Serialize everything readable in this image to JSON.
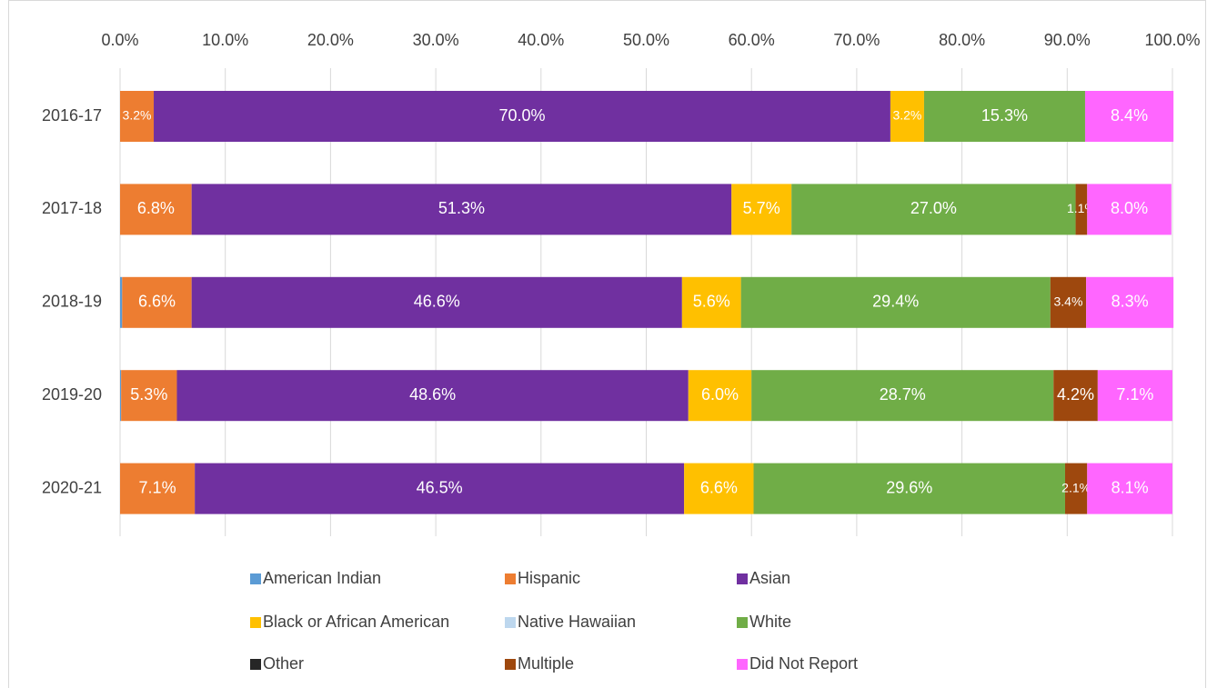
{
  "chart_data": {
    "type": "stacked_bar_horizontal",
    "categories": [
      "2016-17",
      "2017-18",
      "2018-19",
      "2019-20",
      "2020-21"
    ],
    "xlim": [
      0,
      100
    ],
    "xticks": [
      {
        "value": 0,
        "label": "0.0%"
      },
      {
        "value": 10,
        "label": "10.0%"
      },
      {
        "value": 20,
        "label": "20.0%"
      },
      {
        "value": 30,
        "label": "30.0%"
      },
      {
        "value": 40,
        "label": "40.0%"
      },
      {
        "value": 50,
        "label": "50.0%"
      },
      {
        "value": 60,
        "label": "60.0%"
      },
      {
        "value": 70,
        "label": "70.0%"
      },
      {
        "value": 80,
        "label": "80.0%"
      },
      {
        "value": 90,
        "label": "90.0%"
      },
      {
        "value": 100,
        "label": "100.0%"
      }
    ],
    "grid": true,
    "legend": "bottom",
    "series": [
      {
        "name": "American Indian",
        "color": "#5b9bd5",
        "values": [
          0,
          0,
          0.2,
          0.1,
          0
        ],
        "value_labels": [
          null,
          null,
          null,
          null,
          null
        ]
      },
      {
        "name": "Hispanic",
        "color": "#ed7d31",
        "values": [
          3.2,
          6.8,
          6.6,
          5.3,
          7.1
        ],
        "value_labels": [
          "3.2%",
          "6.8%",
          "6.6%",
          "5.3%",
          "7.1%"
        ]
      },
      {
        "name": "Asian",
        "color": "#7030a0",
        "values": [
          70.0,
          51.3,
          46.6,
          48.6,
          46.5
        ],
        "value_labels": [
          "70.0%",
          "51.3%",
          "46.6%",
          "48.6%",
          "46.5%"
        ]
      },
      {
        "name": "Black or African American",
        "color": "#ffc000",
        "values": [
          3.2,
          5.7,
          5.6,
          6.0,
          6.6
        ],
        "value_labels": [
          "3.2%",
          "5.7%",
          "5.6%",
          "6.0%",
          "6.6%"
        ]
      },
      {
        "name": "Native Hawaiian",
        "color": "#bdd7ee",
        "values": [
          0,
          0,
          0,
          0,
          0
        ],
        "value_labels": [
          null,
          null,
          null,
          null,
          null
        ]
      },
      {
        "name": "White",
        "color": "#70ad47",
        "values": [
          15.3,
          27.0,
          29.4,
          28.7,
          29.6
        ],
        "value_labels": [
          "15.3%",
          "27.0%",
          "29.4%",
          "28.7%",
          "29.6%"
        ]
      },
      {
        "name": "Other",
        "color": "#262626",
        "values": [
          0,
          0,
          0,
          0,
          0
        ],
        "value_labels": [
          null,
          null,
          null,
          null,
          null
        ]
      },
      {
        "name": "Multiple",
        "color": "#9e480e",
        "values": [
          0,
          1.1,
          3.4,
          4.2,
          2.1
        ],
        "value_labels": [
          null,
          "1.1%",
          "3.4%",
          "4.2%",
          "2.1%"
        ]
      },
      {
        "name": "Did Not Report",
        "color": "#ff66ff",
        "values": [
          8.4,
          8.0,
          8.3,
          7.1,
          8.1
        ],
        "value_labels": [
          "8.4%",
          "8.0%",
          "8.3%",
          "7.1%",
          "8.1%"
        ]
      }
    ]
  }
}
